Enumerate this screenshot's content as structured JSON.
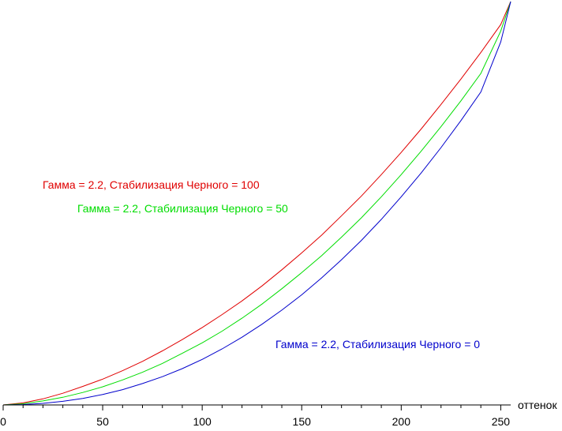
{
  "chart_data": {
    "type": "line",
    "xlabel": "оттенок",
    "ylabel": "",
    "xlim": [
      0,
      255
    ],
    "ylim": [
      0,
      1
    ],
    "grid": false,
    "x_ticks": [
      0,
      50,
      100,
      150,
      200,
      250
    ],
    "series": [
      {
        "name": "Гамма = 2.2, Стабилизация Черного = 100",
        "color": "#e00000",
        "x": [
          0,
          10,
          20,
          30,
          40,
          50,
          60,
          70,
          80,
          90,
          100,
          110,
          120,
          130,
          140,
          150,
          160,
          170,
          180,
          190,
          200,
          210,
          220,
          230,
          240,
          250,
          255
        ],
        "y": [
          0.0,
          0.005,
          0.015,
          0.029,
          0.046,
          0.064,
          0.085,
          0.108,
          0.134,
          0.162,
          0.192,
          0.224,
          0.258,
          0.295,
          0.335,
          0.377,
          0.421,
          0.469,
          0.518,
          0.571,
          0.626,
          0.684,
          0.745,
          0.808,
          0.874,
          0.943,
          1.0
        ]
      },
      {
        "name": "Гамма = 2.2, Стабилизация Черного = 50",
        "color": "#00dd00",
        "x": [
          0,
          10,
          20,
          30,
          40,
          50,
          60,
          70,
          80,
          90,
          100,
          110,
          120,
          130,
          140,
          150,
          160,
          170,
          180,
          190,
          200,
          210,
          220,
          230,
          240,
          250,
          255
        ],
        "y": [
          0.0,
          0.003,
          0.01,
          0.019,
          0.031,
          0.045,
          0.062,
          0.081,
          0.103,
          0.128,
          0.154,
          0.183,
          0.215,
          0.25,
          0.288,
          0.328,
          0.37,
          0.416,
          0.464,
          0.516,
          0.571,
          0.629,
          0.69,
          0.754,
          0.822,
          0.927,
          1.0
        ]
      },
      {
        "name": "Гамма = 2.2, Стабилизация Черного = 0",
        "color": "#0000cc",
        "x": [
          0,
          10,
          20,
          30,
          40,
          50,
          60,
          70,
          80,
          90,
          100,
          110,
          120,
          130,
          140,
          150,
          160,
          170,
          180,
          190,
          200,
          210,
          220,
          230,
          240,
          250,
          255
        ],
        "y": [
          0.0,
          0.001,
          0.004,
          0.009,
          0.016,
          0.026,
          0.038,
          0.053,
          0.07,
          0.09,
          0.113,
          0.139,
          0.168,
          0.2,
          0.235,
          0.273,
          0.315,
          0.36,
          0.408,
          0.46,
          0.516,
          0.575,
          0.638,
          0.705,
          0.776,
          0.9,
          1.0
        ]
      }
    ],
    "annotations": [
      {
        "text": "Гамма = 2.2, Стабилизация Черного = 100",
        "color": "#e00000",
        "series": 0
      },
      {
        "text": "Гамма = 2.2, Стабилизация Черного = 50",
        "color": "#00dd00",
        "series": 1
      },
      {
        "text": "Гамма = 2.2, Стабилизация Черного = 0",
        "color": "#0000cc",
        "series": 2
      }
    ]
  }
}
